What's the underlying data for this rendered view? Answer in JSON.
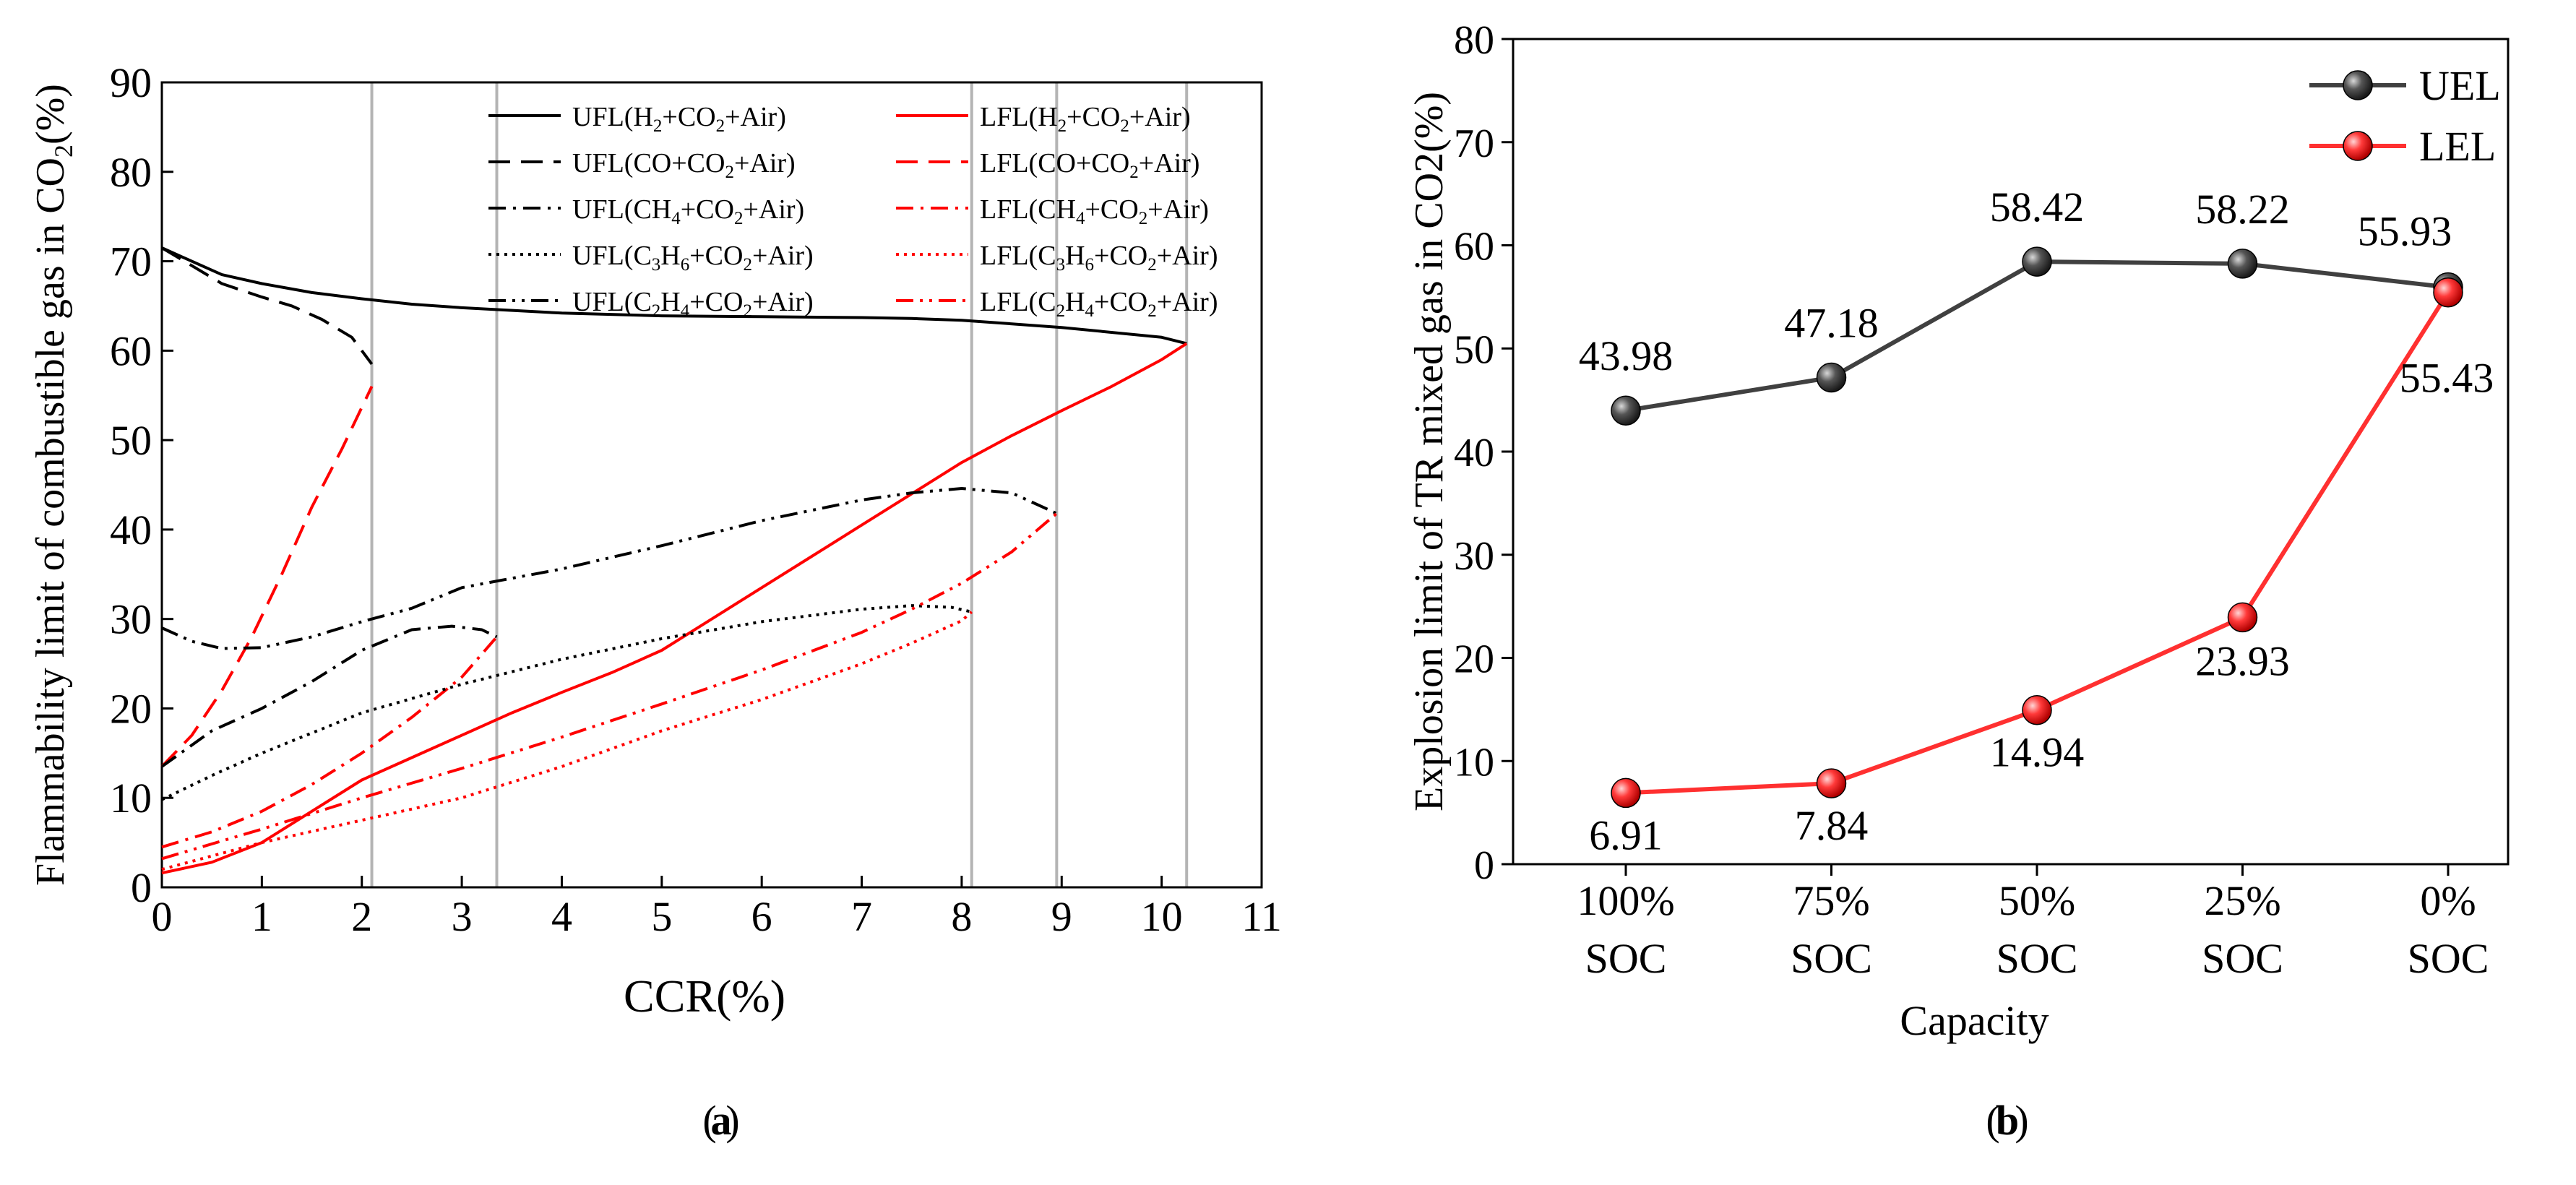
{
  "chart_data": [
    {
      "type": "line",
      "panel_label": "a",
      "xlabel": "CCR(%)",
      "ylabel": "Flammability limit of combustible gas in CO2(%)",
      "xlim": [
        0,
        11
      ],
      "ylim": [
        0,
        90
      ],
      "x_ticks": [
        0,
        1,
        2,
        3,
        4,
        5,
        6,
        7,
        8,
        9,
        10,
        11
      ],
      "y_ticks": [
        0,
        10,
        20,
        30,
        40,
        50,
        60,
        70,
        80,
        90
      ],
      "reference_lines_x": [
        2.1,
        3.35,
        8.1,
        8.95,
        10.25
      ],
      "legend_position": "top",
      "series": [
        {
          "name": "UFL(H2+CO2+Air)",
          "color": "#000000",
          "dash": "solid",
          "x": [
            0,
            0.3,
            0.6,
            1,
            1.5,
            2,
            2.5,
            3,
            4,
            5,
            6,
            7,
            7.5,
            8,
            9,
            10,
            10.25
          ],
          "y": [
            71.5,
            70,
            68.5,
            67.5,
            66.5,
            65.8,
            65.2,
            64.8,
            64.2,
            63.9,
            63.8,
            63.7,
            63.6,
            63.4,
            62.6,
            61.5,
            60.8
          ]
        },
        {
          "name": "LFL(H2+CO2+Air)",
          "color": "#ff0000",
          "dash": "solid",
          "x": [
            0,
            0.5,
            1,
            1.5,
            2,
            2.5,
            3,
            3.5,
            4,
            4.5,
            5,
            5.5,
            6,
            6.5,
            7,
            7.5,
            8,
            8.5,
            9,
            9.5,
            10,
            10.25
          ],
          "y": [
            1.6,
            2.8,
            5,
            8.5,
            12,
            14.5,
            17,
            19.5,
            21.8,
            24,
            26.5,
            30,
            33.5,
            37,
            40.5,
            44,
            47.5,
            50.5,
            53.3,
            56,
            59,
            60.8
          ]
        },
        {
          "name": "UFL(CO+CO2+Air)",
          "color": "#000000",
          "dash": "dashed",
          "x": [
            0,
            0.3,
            0.6,
            1,
            1.3,
            1.6,
            1.9,
            2.1
          ],
          "y": [
            71.5,
            69.5,
            67.5,
            66,
            65,
            63.5,
            61.5,
            58.5
          ]
        },
        {
          "name": "LFL(CO+CO2+Air)",
          "color": "#ff0000",
          "dash": "dashed",
          "x": [
            0,
            0.3,
            0.6,
            0.9,
            1.2,
            1.5,
            1.8,
            2.1
          ],
          "y": [
            13.5,
            17,
            22,
            28,
            35,
            42.5,
            49,
            56
          ]
        },
        {
          "name": "UFL(CH4+CO2+Air)",
          "color": "#000000",
          "dash": "dashdot",
          "x": [
            0,
            0.5,
            1,
            1.5,
            2,
            2.5,
            2.9,
            3.2,
            3.35
          ],
          "y": [
            13.5,
            17.5,
            20,
            23,
            26.5,
            28.8,
            29.2,
            28.8,
            28
          ]
        },
        {
          "name": "LFL(CH4+CO2+Air)",
          "color": "#ff0000",
          "dash": "dashdot",
          "x": [
            0,
            0.5,
            1,
            1.5,
            2,
            2.5,
            3,
            3.35
          ],
          "y": [
            4.5,
            6.2,
            8.5,
            11.5,
            15,
            19,
            23.5,
            28
          ]
        },
        {
          "name": "UFL(C3H6+CO2+Air)",
          "color": "#000000",
          "dash": "dotted",
          "x": [
            0,
            0.5,
            1,
            2,
            3,
            4,
            5,
            6,
            7,
            7.5,
            7.9,
            8.1
          ],
          "y": [
            9.8,
            12.5,
            15,
            19.5,
            22.7,
            25.5,
            27.8,
            29.7,
            31.1,
            31.5,
            31.3,
            30.8
          ]
        },
        {
          "name": "LFL(C3H6+CO2+Air)",
          "color": "#ff0000",
          "dash": "dotted",
          "x": [
            0,
            1,
            2,
            3,
            4,
            5,
            6,
            7,
            7.5,
            8,
            8.1
          ],
          "y": [
            2,
            5,
            7.5,
            10,
            13.5,
            17.5,
            21,
            25,
            27.3,
            29.8,
            30.8
          ]
        },
        {
          "name": "UFL(C2H4+CO2+Air)",
          "color": "#000000",
          "dash": "dashdotdot",
          "x": [
            0,
            0.3,
            0.6,
            1,
            1.5,
            2,
            2.5,
            3,
            4,
            5,
            6,
            7,
            7.5,
            8,
            8.5,
            8.95
          ],
          "y": [
            29,
            27.5,
            26.7,
            26.8,
            28,
            29.7,
            31.2,
            33.5,
            35.6,
            38.2,
            41,
            43.3,
            44.1,
            44.6,
            44.1,
            41.8
          ]
        },
        {
          "name": "LFL(C2H4+CO2+Air)",
          "color": "#ff0000",
          "dash": "dashdotdot",
          "x": [
            0,
            1,
            2,
            3,
            4,
            5,
            6,
            7,
            7.5,
            8,
            8.5,
            8.95
          ],
          "y": [
            3.2,
            6.5,
            10,
            13.3,
            16.8,
            20.5,
            24.3,
            28.5,
            31.1,
            34,
            37.5,
            41.8
          ]
        }
      ]
    },
    {
      "type": "line",
      "panel_label": "b",
      "xlabel": "Capacity",
      "ylabel": "Explosion limit of TR mixed gas in CO2(%)",
      "ylim": [
        0,
        80
      ],
      "y_ticks": [
        0,
        10,
        20,
        30,
        40,
        50,
        60,
        70,
        80
      ],
      "categories": [
        [
          "100%",
          "SOC"
        ],
        [
          "75%",
          "SOC"
        ],
        [
          "50%",
          "SOC"
        ],
        [
          "25%",
          "SOC"
        ],
        [
          "0%",
          "SOC"
        ]
      ],
      "legend_position": "top-right",
      "series": [
        {
          "name": "UEL",
          "color": "#404040",
          "values": [
            43.98,
            47.18,
            58.42,
            58.22,
            55.93
          ],
          "labels": [
            "43.98",
            "47.18",
            "58.42",
            "58.22",
            "55.93"
          ]
        },
        {
          "name": "LEL",
          "color": "#ff3030",
          "values": [
            6.91,
            7.84,
            14.94,
            23.93,
            55.43
          ],
          "labels": [
            "6.91",
            "7.84",
            "14.94",
            "23.93",
            "55.43"
          ]
        }
      ]
    }
  ]
}
